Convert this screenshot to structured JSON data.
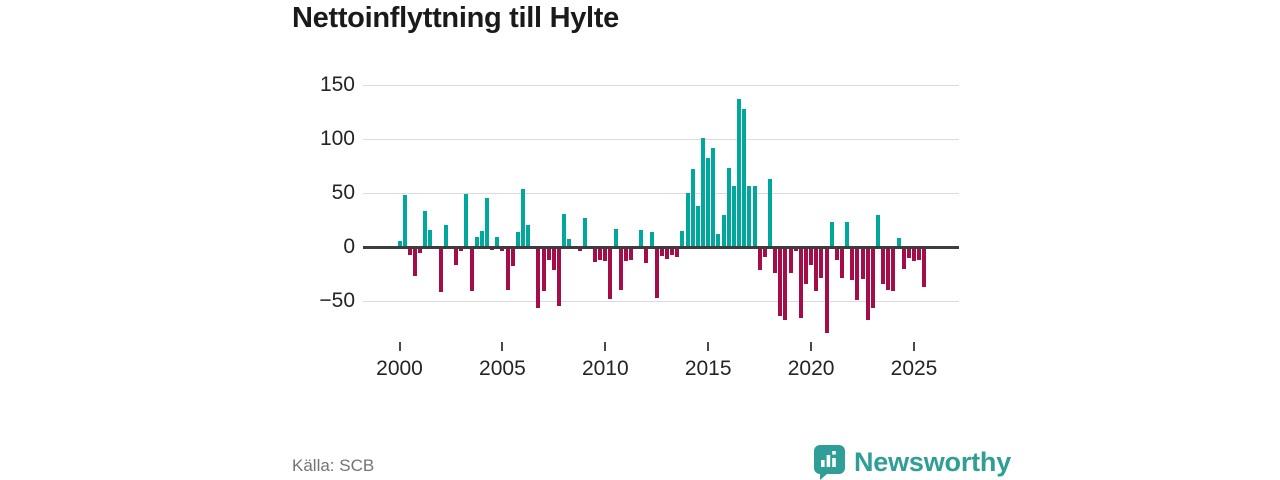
{
  "title": "Nettoinflyttning till Hylte",
  "source": "Källa: SCB",
  "branding": {
    "name": "Newsworthy",
    "color": "#2f9e96"
  },
  "colors": {
    "positive": "#00a79d",
    "negative": "#a50d49",
    "grid": "#dcdcdc",
    "zero_line": "#3d3d3d",
    "axis_text": "#242424",
    "muted_text": "#747474"
  },
  "chart_data": {
    "type": "bar",
    "title": "Nettoinflyttning till Hylte",
    "frequency": "quarterly",
    "start": "2000 Q1",
    "end": "2025 Q3",
    "x_tick_labels": [
      "2000",
      "2005",
      "2010",
      "2015",
      "2020",
      "2025"
    ],
    "y_ticks": [
      150,
      100,
      50,
      0,
      -50
    ],
    "ylim": [
      -100,
      164
    ],
    "grid": "horizontal-only",
    "legend": "none",
    "positive_color": "#00a79d",
    "negative_color": "#a50d49",
    "values_by_year": {
      "2000": [
        6,
        48,
        -7,
        -27
      ],
      "2001": [
        -6,
        33,
        16,
        0
      ],
      "2002": [
        -42,
        20,
        0,
        -17
      ],
      "2003": [
        -4,
        49,
        -41,
        9
      ],
      "2004": [
        15,
        45,
        -3,
        9
      ],
      "2005": [
        -4,
        -40,
        -18,
        14
      ],
      "2006": [
        54,
        20,
        -2,
        -57
      ],
      "2007": [
        -41,
        -12,
        -21,
        -55
      ],
      "2008": [
        31,
        7,
        0,
        -4
      ],
      "2009": [
        27,
        0,
        -14,
        -12
      ],
      "2010": [
        -13,
        -48,
        17,
        -40
      ],
      "2011": [
        -13,
        -12,
        0,
        16
      ],
      "2012": [
        -15,
        14,
        -47,
        -8
      ],
      "2013": [
        -11,
        -7,
        -9,
        15
      ],
      "2014": [
        50,
        72,
        38,
        101
      ],
      "2015": [
        83,
        92,
        12,
        30
      ],
      "2016": [
        73,
        57,
        137,
        128
      ],
      "2017": [
        57,
        57,
        -21,
        -9
      ],
      "2018": [
        63,
        -24,
        -64,
        -68
      ],
      "2019": [
        -24,
        -4,
        -66,
        -34
      ],
      "2020": [
        -17,
        -41,
        -29,
        -80
      ],
      "2021": [
        23,
        -12,
        -29,
        23
      ],
      "2022": [
        -31,
        -49,
        -30,
        -68
      ],
      "2023": [
        -57,
        30,
        -34,
        -40
      ],
      "2024": [
        -41,
        8,
        -20,
        -10
      ],
      "2025": [
        -13,
        -12,
        -37
      ]
    }
  }
}
